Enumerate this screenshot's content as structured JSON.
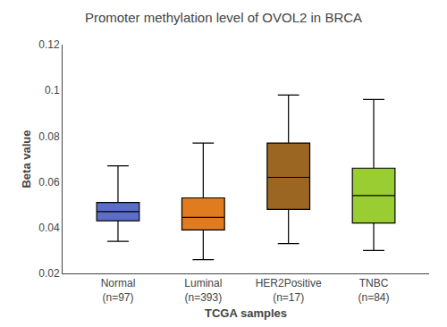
{
  "chart_data": {
    "type": "box",
    "title": "Promoter methylation level of OVOL2 in BRCA",
    "xlabel": "TCGA samples",
    "ylabel": "Beta value",
    "categories": [
      "Normal\n(n=97)",
      "Luminal\n(n=393)",
      "HER2Positive\n(n=17)",
      "TNBC\n(n=84)"
    ],
    "colors": [
      "#5b6dc8",
      "#e07b20",
      "#9b6522",
      "#9acd32"
    ],
    "boxes": [
      {
        "q1": 0.043,
        "median": 0.047,
        "q3": 0.051,
        "whislo": 0.034,
        "whishi": 0.067
      },
      {
        "q1": 0.039,
        "median": 0.0445,
        "q3": 0.053,
        "whislo": 0.026,
        "whishi": 0.077
      },
      {
        "q1": 0.048,
        "median": 0.062,
        "q3": 0.077,
        "whislo": 0.033,
        "whishi": 0.098
      },
      {
        "q1": 0.042,
        "median": 0.054,
        "q3": 0.066,
        "whislo": 0.03,
        "whishi": 0.096
      }
    ],
    "ylim": [
      0.02,
      0.12
    ],
    "yticks": [
      0.02,
      0.04,
      0.06,
      0.08,
      0.1,
      0.12
    ],
    "grid": false
  }
}
